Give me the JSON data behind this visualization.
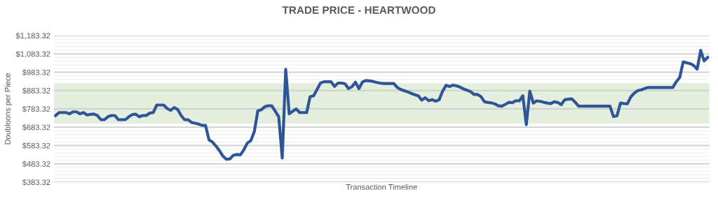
{
  "chart_data": {
    "type": "line",
    "title": "TRADE PRICE - HEARTWOOD",
    "xlabel": "Transaction Timeline",
    "ylabel": "Doubloons per Piece",
    "categories": [
      null,
      null,
      null,
      null,
      null,
      null,
      null,
      null,
      null,
      null,
      null,
      null,
      null,
      null,
      null,
      null,
      null,
      null,
      null,
      null,
      null,
      null,
      null,
      null,
      null,
      null,
      null,
      null,
      null,
      null,
      null,
      null,
      null,
      null,
      null,
      null,
      null,
      null,
      null,
      null,
      null,
      null,
      null,
      null,
      null,
      null,
      null,
      null,
      null,
      null,
      null,
      null,
      null,
      null,
      null,
      null,
      null,
      null,
      null,
      null,
      null,
      null,
      null,
      null,
      null,
      null,
      null,
      null,
      null,
      null,
      null,
      null,
      null,
      null,
      null,
      null,
      null,
      null,
      null,
      null,
      null,
      null,
      null,
      null,
      null,
      null,
      null,
      null,
      null,
      null,
      null,
      null,
      null,
      null,
      null,
      null,
      null,
      null,
      null,
      null,
      null,
      null,
      null,
      null,
      null,
      null,
      null,
      null,
      null,
      null,
      null,
      null,
      null,
      null,
      null,
      null,
      null,
      null,
      null,
      null,
      null,
      null,
      null,
      null,
      null,
      null,
      null,
      null,
      null,
      null,
      null,
      null,
      null,
      null,
      null,
      null,
      null,
      null,
      null,
      null,
      null,
      null,
      null,
      null,
      null,
      null,
      null,
      null,
      null,
      null,
      null,
      null,
      null,
      null,
      null,
      null,
      null,
      null,
      null,
      null,
      null,
      null,
      null,
      null,
      null,
      null,
      null,
      null,
      null,
      null,
      null,
      null,
      null,
      null,
      null,
      null,
      null,
      null,
      null,
      null,
      null,
      null,
      null,
      null,
      null,
      null,
      null,
      null
    ],
    "series": [
      {
        "color": "#2f5597",
        "values": [
          747,
          763,
          763,
          763,
          756,
          767,
          767,
          756,
          763,
          750,
          753,
          755,
          747,
          724,
          724,
          740,
          747,
          747,
          724,
          724,
          724,
          740,
          752,
          754,
          740,
          747,
          747,
          760,
          763,
          804,
          804,
          804,
          785,
          775,
          790,
          780,
          747,
          724,
          724,
          709,
          705,
          700,
          693,
          693,
          614,
          602,
          580,
          555,
          525,
          508,
          510,
          530,
          534,
          532,
          560,
          597,
          610,
          660,
          773,
          778,
          795,
          800,
          800,
          770,
          740,
          515,
          999,
          756,
          770,
          783,
          763,
          763,
          763,
          850,
          855,
          890,
          925,
          931,
          931,
          931,
          906,
          924,
          924,
          920,
          894,
          904,
          929,
          894,
          930,
          938,
          936,
          933,
          928,
          924,
          922,
          922,
          922,
          922,
          900,
          889,
          882,
          876,
          868,
          860,
          855,
          831,
          844,
          828,
          834,
          825,
          833,
          880,
          912,
          905,
          913,
          909,
          902,
          892,
          885,
          878,
          862,
          862,
          850,
          822,
          818,
          816,
          810,
          800,
          798,
          808,
          819,
          817,
          828,
          827,
          855,
          697,
          880,
          815,
          827,
          824,
          819,
          815,
          812,
          822,
          818,
          806,
          833,
          836,
          838,
          820,
          798,
          798,
          798,
          798,
          798,
          798,
          798,
          798,
          798,
          798,
          741,
          745,
          815,
          812,
          811,
          850,
          870,
          883,
          887,
          895,
          900,
          900,
          900,
          900,
          900,
          900,
          900,
          900,
          931,
          955,
          1040,
          1035,
          1030,
          1020,
          1000,
          1103,
          1045,
          1064
        ]
      }
    ],
    "ylim": [
      383.32,
      1183.32
    ],
    "yticks": [
      {
        "value": 383.32,
        "label": "$383.32"
      },
      {
        "value": 483.32,
        "label": "$483.32"
      },
      {
        "value": 583.32,
        "label": "$583.32"
      },
      {
        "value": 683.32,
        "label": "$683.32"
      },
      {
        "value": 783.32,
        "label": "$783.32"
      },
      {
        "value": 883.32,
        "label": "$883.32"
      },
      {
        "value": 983.32,
        "label": "$983.32"
      },
      {
        "value": 1083.32,
        "label": "$1,083.32"
      },
      {
        "value": 1183.32,
        "label": "$1,183.32"
      }
    ],
    "bands": [
      {
        "axis": "y",
        "from": 705,
        "to": 920,
        "color": "#e2efda"
      }
    ],
    "grid": "y",
    "tick_labels": "y",
    "legend": false,
    "marker": "none",
    "line_style": "solid"
  }
}
